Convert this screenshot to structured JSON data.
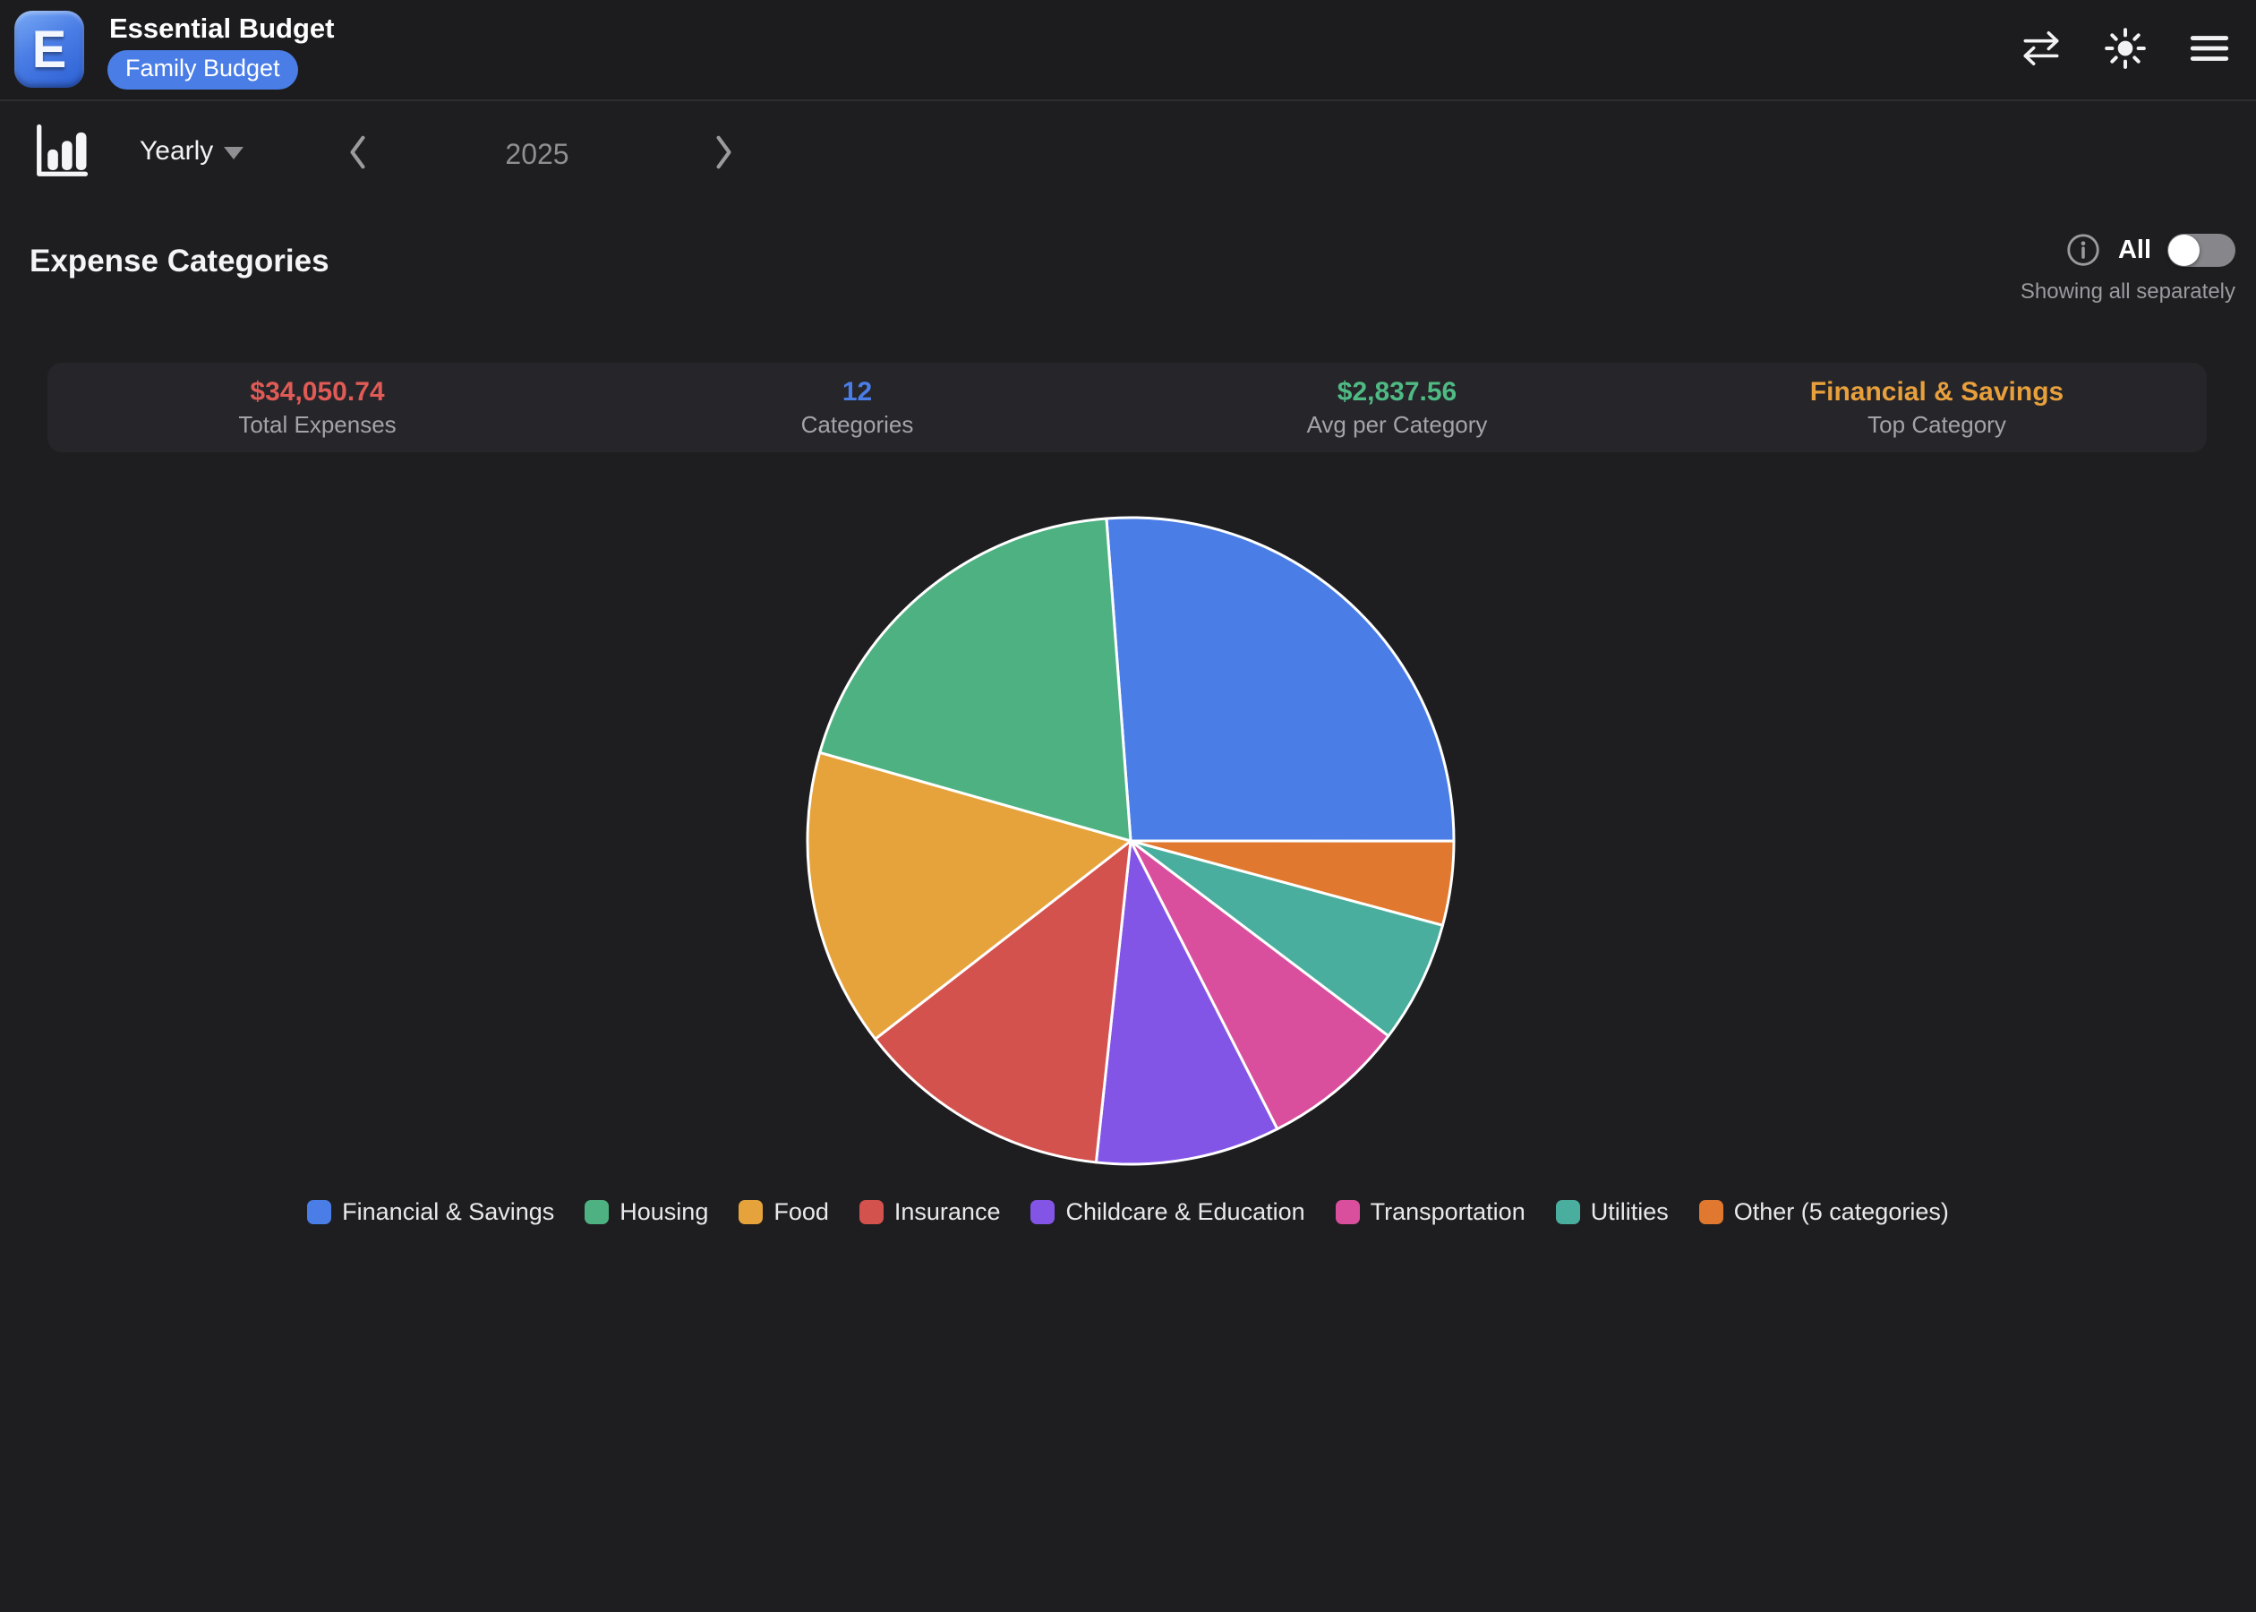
{
  "header": {
    "logo_letter": "E",
    "title": "Essential Budget",
    "badge": "Family Budget"
  },
  "toolbar": {
    "period_selector": "Yearly",
    "current_period": "2025"
  },
  "section": {
    "title": "Expense Categories",
    "toggle_label": "All",
    "toggle_state": "off",
    "subtitle": "Showing all separately"
  },
  "stats": {
    "items": [
      {
        "value": "$34,050.74",
        "label": "Total Expenses",
        "color": "#e05b55"
      },
      {
        "value": "12",
        "label": "Categories",
        "color": "#4a7de5"
      },
      {
        "value": "$2,837.56",
        "label": "Avg per Category",
        "color": "#4fba83"
      },
      {
        "value": "Financial & Savings",
        "label": "Top Category",
        "color": "#e8a03c"
      }
    ]
  },
  "chart_data": {
    "type": "pie",
    "title": "Expense Categories",
    "total": "$34,050.74",
    "value_unit": "percent",
    "percents_estimated_from_angles": true,
    "start_angle_deg": -4.3,
    "direction": "clockwise",
    "legend_position": "bottom",
    "segments": [
      {
        "label": "Financial & Savings",
        "percent": 26.2,
        "color": "#4a7de5"
      },
      {
        "label": "Housing",
        "percent": 19.4,
        "color": "#4eb181"
      },
      {
        "label": "Food",
        "percent": 14.9,
        "color": "#e6a33c"
      },
      {
        "label": "Insurance",
        "percent": 12.8,
        "color": "#d4524e"
      },
      {
        "label": "Childcare & Education",
        "percent": 9.2,
        "color": "#8355e6"
      },
      {
        "label": "Transportation",
        "percent": 7.2,
        "color": "#da4f9d"
      },
      {
        "label": "Utilities",
        "percent": 6.1,
        "color": "#49ae9d"
      },
      {
        "label": "Other (5 categories)",
        "percent": 4.2,
        "color": "#e0792f"
      }
    ],
    "clockwise_order": [
      "Financial & Savings",
      "Other (5 categories)",
      "Utilities",
      "Transportation",
      "Childcare & Education",
      "Insurance",
      "Food",
      "Housing"
    ]
  }
}
